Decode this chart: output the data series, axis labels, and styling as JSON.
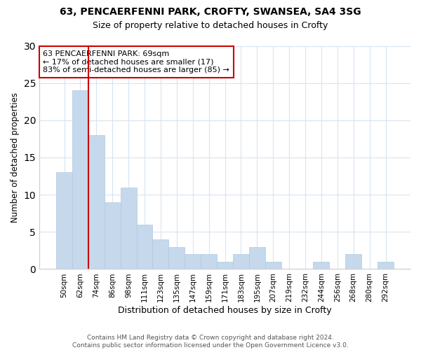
{
  "title1": "63, PENCAERFENNI PARK, CROFTY, SWANSEA, SA4 3SG",
  "title2": "Size of property relative to detached houses in Crofty",
  "xlabel": "Distribution of detached houses by size in Crofty",
  "ylabel": "Number of detached properties",
  "categories": [
    "50sqm",
    "62sqm",
    "74sqm",
    "86sqm",
    "98sqm",
    "111sqm",
    "123sqm",
    "135sqm",
    "147sqm",
    "159sqm",
    "171sqm",
    "183sqm",
    "195sqm",
    "207sqm",
    "219sqm",
    "232sqm",
    "244sqm",
    "256sqm",
    "268sqm",
    "280sqm",
    "292sqm"
  ],
  "values": [
    13,
    24,
    18,
    9,
    11,
    6,
    4,
    3,
    2,
    2,
    1,
    2,
    3,
    1,
    0,
    0,
    1,
    0,
    2,
    0,
    1
  ],
  "bar_color": "#c6d9ec",
  "bar_edge_color": "#b0c8de",
  "grid_color": "#d8e4f0",
  "vline_x": 2.0,
  "vline_color": "#cc0000",
  "annotation_text": "63 PENCAERFENNI PARK: 69sqm\n← 17% of detached houses are smaller (17)\n83% of semi-detached houses are larger (85) →",
  "ylim": [
    0,
    30
  ],
  "yticks": [
    0,
    5,
    10,
    15,
    20,
    25,
    30
  ],
  "footer": "Contains HM Land Registry data © Crown copyright and database right 2024.\nContains public sector information licensed under the Open Government Licence v3.0.",
  "bg_color": "#ffffff",
  "plot_bg_color": "#ffffff",
  "title1_fontsize": 10,
  "title2_fontsize": 9
}
